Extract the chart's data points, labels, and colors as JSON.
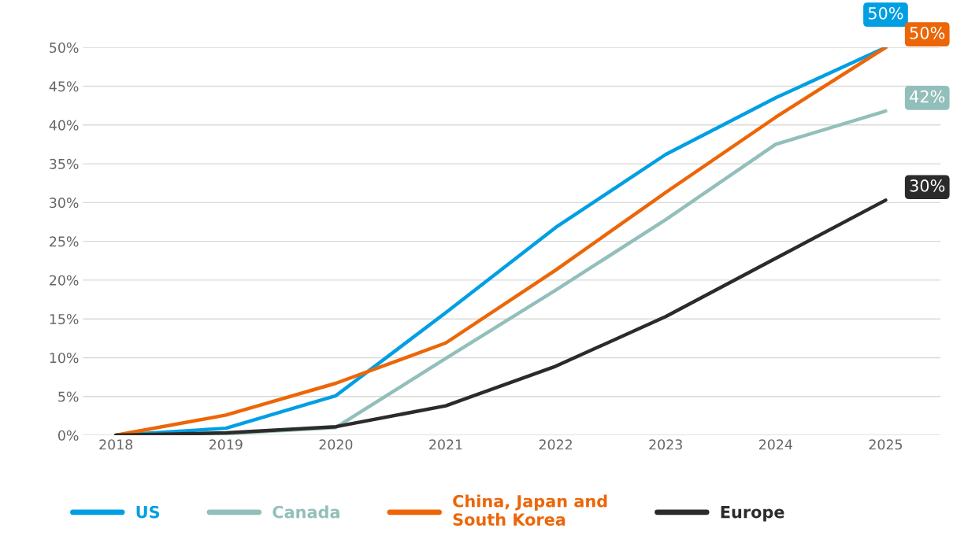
{
  "chart_data": {
    "type": "line",
    "categories": [
      "2018",
      "2019",
      "2020",
      "2021",
      "2022",
      "2023",
      "2024",
      "2025"
    ],
    "series": [
      {
        "name": "US",
        "color": "#009fe3",
        "values": [
          0,
          0.9,
          5.1,
          15.8,
          26.8,
          36.2,
          43.5,
          50
        ],
        "value_labels": [
          null,
          null,
          null,
          null,
          null,
          null,
          null,
          "50%"
        ]
      },
      {
        "name": "Canada",
        "color": "#93bfbb",
        "values": [
          0,
          0.2,
          1.0,
          9.9,
          18.7,
          27.8,
          37.5,
          41.8
        ],
        "value_labels": [
          null,
          null,
          null,
          null,
          null,
          null,
          null,
          "42%"
        ]
      },
      {
        "name": "China, Japan and\nSouth Korea",
        "color": "#ec6608",
        "values": [
          0,
          2.6,
          6.7,
          11.9,
          21.3,
          31.3,
          41,
          50
        ],
        "value_labels": [
          null,
          null,
          null,
          null,
          null,
          null,
          null,
          "50%"
        ]
      },
      {
        "name": "Europe",
        "color": "#2b2b2b",
        "values": [
          0,
          0.3,
          1.1,
          3.8,
          8.9,
          15.3,
          22.8,
          30.3
        ],
        "value_labels": [
          null,
          null,
          null,
          null,
          null,
          null,
          null,
          "30%"
        ]
      }
    ],
    "ylim": [
      0,
      50
    ],
    "yticks": [
      {
        "value": 0,
        "label": "0%"
      },
      {
        "value": 5,
        "label": "5%"
      },
      {
        "value": 10,
        "label": "10%"
      },
      {
        "value": 15,
        "label": "15%"
      },
      {
        "value": 20,
        "label": "20%"
      },
      {
        "value": 25,
        "label": "25%"
      },
      {
        "value": 30,
        "label": "30%"
      },
      {
        "value": 35,
        "label": "35%"
      },
      {
        "value": 40,
        "label": "40%"
      },
      {
        "value": 45,
        "label": "45%"
      },
      {
        "value": 50,
        "label": "50%"
      }
    ],
    "grid": "y",
    "legend": "bottom",
    "marker": "none",
    "line_style": "solid"
  }
}
